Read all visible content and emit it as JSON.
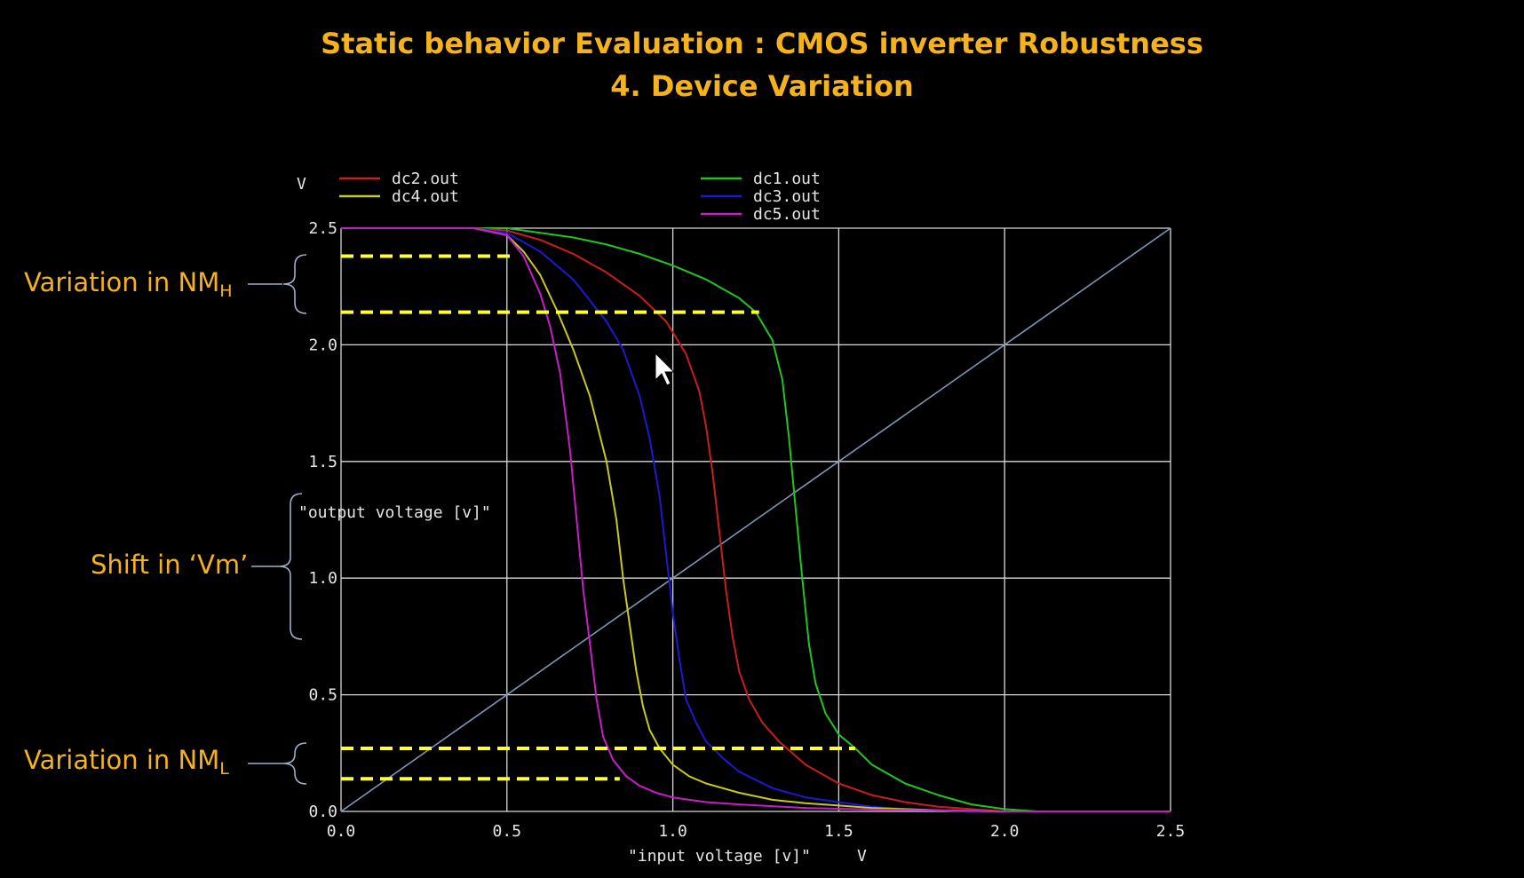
{
  "title": {
    "line1": "Static behavior Evaluation : CMOS inverter Robustness",
    "line2": "4. Device Variation"
  },
  "annotations": {
    "nmh": {
      "text": "Variation in NM",
      "sub": "H"
    },
    "vm": {
      "text": "Shift in ‘Vm’"
    },
    "nml": {
      "text": "Variation in NM",
      "sub": "L"
    }
  },
  "colors": {
    "title": "#f5b21b",
    "annotation": "#f5b21b",
    "dashed_markers": "#ffff33",
    "grid": "#d8d8d8",
    "axis_text": "#e6e6e6",
    "dc1": "#22c322",
    "dc2": "#c81e1e",
    "dc3": "#1a1ad0",
    "dc4": "#c8c81e",
    "dc5": "#c81ec8",
    "reference": "#7f96b8",
    "brace": "#9fb0c8"
  },
  "chart_data": {
    "type": "line",
    "xlabel": "\"input voltage [v]\"",
    "xunit": "V",
    "ylabel": "\"output voltage [v]\"",
    "yunit": "V",
    "xlim": [
      0,
      2.5
    ],
    "ylim": [
      0,
      2.5
    ],
    "xticks": [
      "0.0",
      "0.5",
      "1.0",
      "1.5",
      "2.0",
      "2.5"
    ],
    "yticks": [
      "0.0",
      "0.5",
      "1.0",
      "1.5",
      "2.0",
      "2.5"
    ],
    "grid": true,
    "legend_position": "top",
    "legend": [
      {
        "name": "dc2.out",
        "color_key": "dc2"
      },
      {
        "name": "dc4.out",
        "color_key": "dc4"
      },
      {
        "name": "dc1.out",
        "color_key": "dc1"
      },
      {
        "name": "dc3.out",
        "color_key": "dc3"
      },
      {
        "name": "dc5.out",
        "color_key": "dc5"
      }
    ],
    "series": [
      {
        "name": "dc1.out",
        "color_key": "dc1",
        "x": [
          0,
          0.5,
          0.6,
          0.7,
          0.8,
          0.9,
          1.0,
          1.1,
          1.2,
          1.25,
          1.3,
          1.33,
          1.35,
          1.37,
          1.39,
          1.41,
          1.43,
          1.46,
          1.5,
          1.55,
          1.6,
          1.7,
          1.8,
          1.9,
          2.0,
          2.1,
          2.5
        ],
        "y": [
          2.5,
          2.5,
          2.48,
          2.46,
          2.43,
          2.39,
          2.34,
          2.28,
          2.2,
          2.14,
          2.02,
          1.85,
          1.6,
          1.3,
          1.0,
          0.72,
          0.55,
          0.42,
          0.33,
          0.27,
          0.2,
          0.12,
          0.07,
          0.03,
          0.01,
          0,
          0
        ]
      },
      {
        "name": "dc2.out",
        "color_key": "dc2",
        "x": [
          0,
          0.4,
          0.5,
          0.6,
          0.7,
          0.8,
          0.9,
          0.98,
          1.04,
          1.08,
          1.1,
          1.12,
          1.14,
          1.16,
          1.18,
          1.2,
          1.23,
          1.27,
          1.32,
          1.4,
          1.5,
          1.6,
          1.7,
          1.8,
          1.9,
          2.0,
          2.5
        ],
        "y": [
          2.5,
          2.5,
          2.49,
          2.45,
          2.39,
          2.31,
          2.21,
          2.1,
          1.96,
          1.8,
          1.65,
          1.45,
          1.2,
          0.95,
          0.75,
          0.6,
          0.48,
          0.38,
          0.3,
          0.2,
          0.12,
          0.07,
          0.04,
          0.02,
          0.01,
          0,
          0
        ]
      },
      {
        "name": "dc3.out",
        "color_key": "dc3",
        "x": [
          0,
          0.4,
          0.5,
          0.6,
          0.7,
          0.8,
          0.85,
          0.9,
          0.93,
          0.96,
          0.98,
          1.0,
          1.02,
          1.04,
          1.07,
          1.1,
          1.15,
          1.2,
          1.3,
          1.4,
          1.5,
          1.6,
          1.7,
          1.8,
          1.9,
          2.5
        ],
        "y": [
          2.5,
          2.5,
          2.48,
          2.4,
          2.28,
          2.1,
          1.98,
          1.78,
          1.6,
          1.35,
          1.1,
          0.85,
          0.65,
          0.48,
          0.38,
          0.3,
          0.23,
          0.17,
          0.1,
          0.06,
          0.04,
          0.02,
          0.01,
          0.005,
          0,
          0
        ]
      },
      {
        "name": "dc4.out",
        "color_key": "dc4",
        "x": [
          0,
          0.4,
          0.5,
          0.55,
          0.6,
          0.65,
          0.7,
          0.75,
          0.8,
          0.83,
          0.85,
          0.87,
          0.89,
          0.91,
          0.93,
          0.96,
          1.0,
          1.05,
          1.1,
          1.2,
          1.3,
          1.4,
          1.5,
          1.6,
          1.8,
          2.0,
          2.5
        ],
        "y": [
          2.5,
          2.5,
          2.47,
          2.4,
          2.3,
          2.15,
          1.98,
          1.78,
          1.5,
          1.25,
          1.0,
          0.8,
          0.6,
          0.45,
          0.35,
          0.27,
          0.2,
          0.15,
          0.12,
          0.08,
          0.05,
          0.035,
          0.025,
          0.015,
          0.005,
          0,
          0
        ]
      },
      {
        "name": "dc5.out",
        "color_key": "dc5",
        "x": [
          0,
          0.4,
          0.5,
          0.55,
          0.6,
          0.63,
          0.66,
          0.69,
          0.71,
          0.73,
          0.75,
          0.77,
          0.79,
          0.82,
          0.86,
          0.9,
          0.95,
          1.0,
          1.1,
          1.2,
          1.4,
          1.6,
          1.8,
          2.0,
          2.5
        ],
        "y": [
          2.5,
          2.5,
          2.47,
          2.38,
          2.22,
          2.08,
          1.88,
          1.55,
          1.25,
          0.95,
          0.72,
          0.48,
          0.32,
          0.22,
          0.15,
          0.11,
          0.08,
          0.06,
          0.04,
          0.03,
          0.015,
          0.008,
          0.004,
          0,
          0
        ]
      },
      {
        "name": "",
        "color_key": "reference",
        "x": [
          0,
          2.5
        ],
        "y": [
          0,
          2.5
        ]
      }
    ],
    "markers": [
      {
        "y": 2.38,
        "x": [
          0,
          0.52
        ]
      },
      {
        "y": 2.14,
        "x": [
          0,
          1.26
        ]
      },
      {
        "y": 0.27,
        "x": [
          0,
          1.55
        ]
      },
      {
        "y": 0.14,
        "x": [
          0,
          0.84
        ]
      }
    ]
  }
}
